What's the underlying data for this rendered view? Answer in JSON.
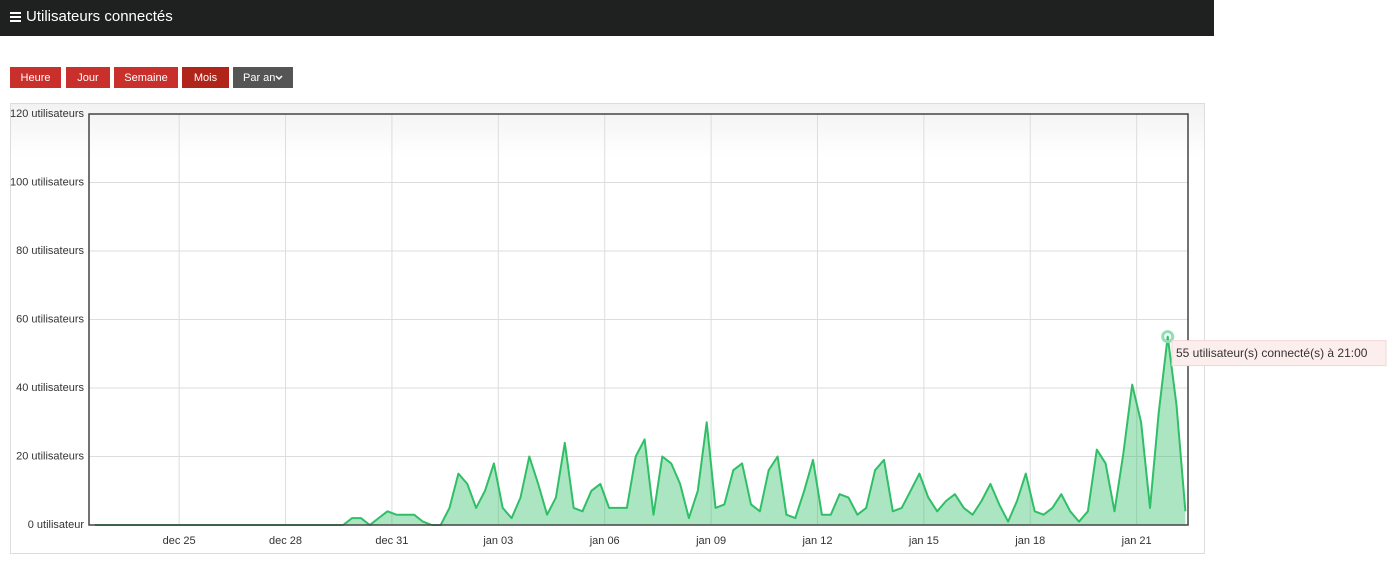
{
  "header": {
    "title": "Utilisateurs connectés"
  },
  "buttons": [
    "Heure",
    "Jour",
    "Semaine",
    "Mois",
    "Par an"
  ],
  "chart_data": {
    "type": "area",
    "color": "#2fbf66",
    "grid": true,
    "x": [
      "dec 22 15:00",
      "dec 22 21:00",
      "dec 23 03:00",
      "dec 23 09:00",
      "dec 23 15:00",
      "dec 23 21:00",
      "dec 24 03:00",
      "dec 24 09:00",
      "dec 24 15:00",
      "dec 24 21:00",
      "dec 25 03:00",
      "dec 25 09:00",
      "dec 25 15:00",
      "dec 25 21:00",
      "dec 26 03:00",
      "dec 26 09:00",
      "dec 26 15:00",
      "dec 26 21:00",
      "dec 27 03:00",
      "dec 27 09:00",
      "dec 27 15:00",
      "dec 27 21:00",
      "dec 28 03:00",
      "dec 28 09:00",
      "dec 28 15:00",
      "dec 28 21:00",
      "dec 29 03:00",
      "dec 29 09:00",
      "dec 29 15:00",
      "dec 29 21:00",
      "dec 30 03:00",
      "dec 30 09:00",
      "dec 30 15:00",
      "dec 30 21:00",
      "dec 31 03:00",
      "dec 31 09:00",
      "dec 31 15:00",
      "dec 31 21:00",
      "jan 01 03:00",
      "jan 01 09:00",
      "jan 01 15:00",
      "jan 01 21:00",
      "jan 02 03:00",
      "jan 02 09:00",
      "jan 02 15:00",
      "jan 02 21:00",
      "jan 03 03:00",
      "jan 03 09:00",
      "jan 03 15:00",
      "jan 03 21:00",
      "jan 04 03:00",
      "jan 04 09:00",
      "jan 04 15:00",
      "jan 04 21:00",
      "jan 05 03:00",
      "jan 05 09:00",
      "jan 05 15:00",
      "jan 05 21:00",
      "jan 06 03:00",
      "jan 06 09:00",
      "jan 06 15:00",
      "jan 06 21:00",
      "jan 07 03:00",
      "jan 07 09:00",
      "jan 07 15:00",
      "jan 07 21:00",
      "jan 08 03:00",
      "jan 08 09:00",
      "jan 08 15:00",
      "jan 08 21:00",
      "jan 09 03:00",
      "jan 09 09:00",
      "jan 09 15:00",
      "jan 09 21:00",
      "jan 10 03:00",
      "jan 10 09:00",
      "jan 10 15:00",
      "jan 10 21:00",
      "jan 11 03:00",
      "jan 11 09:00",
      "jan 11 15:00",
      "jan 11 21:00",
      "jan 12 03:00",
      "jan 12 09:00",
      "jan 12 15:00",
      "jan 12 21:00",
      "jan 13 03:00",
      "jan 13 09:00",
      "jan 13 15:00",
      "jan 13 21:00",
      "jan 14 03:00",
      "jan 14 09:00",
      "jan 14 15:00",
      "jan 14 21:00",
      "jan 15 03:00",
      "jan 15 09:00",
      "jan 15 15:00",
      "jan 15 21:00",
      "jan 16 03:00",
      "jan 16 09:00",
      "jan 16 15:00",
      "jan 16 21:00",
      "jan 17 03:00",
      "jan 17 09:00",
      "jan 17 15:00",
      "jan 17 21:00",
      "jan 18 03:00",
      "jan 18 09:00",
      "jan 18 15:00",
      "jan 18 21:00",
      "jan 19 03:00",
      "jan 19 09:00",
      "jan 19 15:00",
      "jan 19 21:00",
      "jan 20 03:00",
      "jan 20 09:00",
      "jan 20 15:00",
      "jan 20 21:00",
      "jan 21 03:00",
      "jan 21 09:00",
      "jan 21 15:00",
      "jan 21 21:00",
      "jan 22 03:00",
      "jan 22 09:00"
    ],
    "values": [
      0,
      0,
      0,
      0,
      0,
      0,
      0,
      0,
      0,
      0,
      0,
      0,
      0,
      0,
      0,
      0,
      0,
      0,
      0,
      0,
      0,
      0,
      0,
      0,
      0,
      0,
      0,
      0,
      0,
      2,
      2,
      0,
      2,
      4,
      3,
      3,
      3,
      1,
      0,
      0,
      5,
      15,
      12,
      5,
      10,
      18,
      5,
      2,
      8,
      20,
      12,
      3,
      8,
      24,
      5,
      4,
      10,
      12,
      5,
      5,
      5,
      20,
      25,
      3,
      20,
      18,
      12,
      2,
      10,
      30,
      5,
      6,
      16,
      18,
      6,
      4,
      16,
      20,
      3,
      2,
      10,
      19,
      3,
      3,
      9,
      8,
      3,
      5,
      16,
      19,
      4,
      5,
      10,
      15,
      8,
      4,
      7,
      9,
      5,
      3,
      7,
      12,
      6,
      1,
      7,
      15,
      4,
      3,
      5,
      9,
      4,
      1,
      4,
      22,
      18,
      4,
      21,
      41,
      30,
      5,
      33,
      55,
      35,
      4
    ],
    "xlim": [
      "dec 22 11:00",
      "jan 22 10:45"
    ],
    "xticks": [
      {
        "value": "dec 25 00:00",
        "label": "dec 25"
      },
      {
        "value": "dec 28 00:00",
        "label": "dec 28"
      },
      {
        "value": "dec 31 00:00",
        "label": "dec 31"
      },
      {
        "value": "jan 03 00:00",
        "label": "jan 03"
      },
      {
        "value": "jan 06 00:00",
        "label": "jan 06"
      },
      {
        "value": "jan 09 00:00",
        "label": "jan 09"
      },
      {
        "value": "jan 12 00:00",
        "label": "jan 12"
      },
      {
        "value": "jan 15 00:00",
        "label": "jan 15"
      },
      {
        "value": "jan 18 00:00",
        "label": "jan 18"
      },
      {
        "value": "jan 21 00:00",
        "label": "jan 21"
      }
    ],
    "ylim": [
      0,
      120
    ],
    "yticks": [
      {
        "value": 0,
        "label": "0 utilisateur"
      },
      {
        "value": 20,
        "label": "20 utilisateurs"
      },
      {
        "value": 40,
        "label": "40 utilisateurs"
      },
      {
        "value": 60,
        "label": "60 utilisateurs"
      },
      {
        "value": 80,
        "label": "80 utilisateurs"
      },
      {
        "value": 100,
        "label": "100 utilisateurs"
      },
      {
        "value": 120,
        "label": "120 utilisateurs"
      }
    ],
    "highlight": {
      "x": "jan 21 21:00",
      "y": 55,
      "text": "55 utilisateur(s) connecté(s) à 21:00"
    }
  }
}
